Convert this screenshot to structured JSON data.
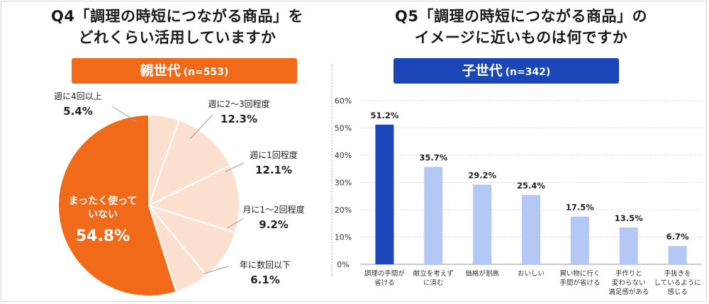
{
  "left_panel": {
    "title_line1": "Q4「調理の時短につながる商品」を",
    "title_line2": "どれくらい活用していますか",
    "banner_label": "親世代",
    "banner_sub": "(n=553)"
  },
  "right_panel": {
    "title_line1": "Q5「調理の時短につながる商品」の",
    "title_line2": "イメージに近いものは何ですか",
    "banner_label": "子世代",
    "banner_sub": "(n=342)"
  },
  "colors": {
    "orange": "#f06a1a",
    "peach": "#fbe0cf",
    "blue_dark": "#1a46b8",
    "blue_light": "#b3c8f5"
  },
  "chart_data": [
    {
      "type": "pie",
      "slices": [
        {
          "label_lines": [
            "まったく使って",
            "いない"
          ],
          "value_text": "54.8%",
          "value": 54.8,
          "color": "#f06a1a"
        },
        {
          "label_lines": [
            "週に4回以上"
          ],
          "value_text": "5.4%",
          "value": 5.4,
          "color": "#fbe0cf"
        },
        {
          "label_lines": [
            "週に2〜3回程度"
          ],
          "value_text": "12.3%",
          "value": 12.3,
          "color": "#fbe0cf"
        },
        {
          "label_lines": [
            "週に1回程度"
          ],
          "value_text": "12.1%",
          "value": 12.1,
          "color": "#fbe0cf"
        },
        {
          "label_lines": [
            "月に1〜2回程度"
          ],
          "value_text": "9.2%",
          "value": 9.2,
          "color": "#fbe0cf"
        },
        {
          "label_lines": [
            "年に数回以下"
          ],
          "value_text": "6.1%",
          "value": 6.1,
          "color": "#fbe0cf"
        }
      ]
    },
    {
      "type": "bar",
      "categories": [
        [
          "調理の手間が",
          "省ける"
        ],
        [
          "献立を考えず",
          "に済む"
        ],
        [
          "価格が割高"
        ],
        [
          "おいしい"
        ],
        [
          "買い物に行く",
          "手間が省ける"
        ],
        [
          "手作りと",
          "変わらない",
          "満足感がある"
        ],
        [
          "手抜きを",
          "しているように",
          "感じる"
        ]
      ],
      "values": [
        51.2,
        35.7,
        29.2,
        25.4,
        17.5,
        13.5,
        6.7
      ],
      "value_labels": [
        "51.2%",
        "35.7%",
        "29.2%",
        "25.4%",
        "17.5%",
        "13.5%",
        "6.7%"
      ],
      "yticks": [
        "0%",
        "10%",
        "20%",
        "30%",
        "40%",
        "50%",
        "60%"
      ],
      "ylim": [
        0,
        60
      ],
      "grid": true,
      "highlight_index": 0
    }
  ]
}
